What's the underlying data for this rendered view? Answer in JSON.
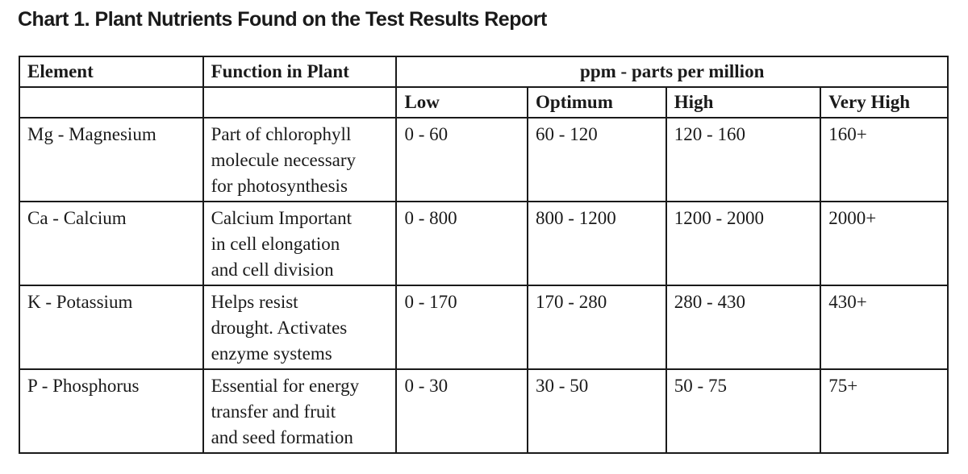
{
  "title": "Chart 1. Plant Nutrients Found on the Test Results Report",
  "headers": {
    "element": "Element",
    "function": "Function in Plant",
    "ppm": "ppm - parts per million",
    "low": "Low",
    "optimum": "Optimum",
    "high": "High",
    "very_high": "Very High"
  },
  "rows": [
    {
      "element": "Mg - Magnesium",
      "function_lines": [
        "Part of chlorophyll",
        "molecule necessary",
        "for photosynthesis"
      ],
      "low": "0 - 60",
      "optimum": "60 - 120",
      "high": "120 - 160",
      "very_high": "160+"
    },
    {
      "element": "Ca - Calcium",
      "function_lines": [
        "Calcium Important",
        "in cell elongation",
        "and cell division"
      ],
      "low": "0 - 800",
      "optimum": "800 - 1200",
      "high": "1200 - 2000",
      "very_high": "2000+"
    },
    {
      "element": "K - Potassium",
      "function_lines": [
        "Helps resist",
        "drought. Activates",
        "enzyme systems"
      ],
      "low": "0 - 170",
      "optimum": "170 - 280",
      "high": "280 - 430",
      "very_high": "430+"
    },
    {
      "element": "P - Phosphorus",
      "function_lines": [
        "Essential for energy",
        "transfer and fruit",
        "and seed formation"
      ],
      "low": "0 - 30",
      "optimum": "30 - 50",
      "high": "50 - 75",
      "very_high": "75+"
    }
  ]
}
